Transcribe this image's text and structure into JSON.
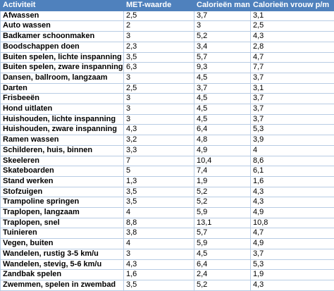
{
  "table": {
    "header": [
      "Activiteit",
      "MET-waarde",
      "Calorieën man p/m",
      "Calorieën vrouw p/m"
    ],
    "rows": [
      [
        "Afwassen",
        "2,5",
        "3,7",
        "3,1"
      ],
      [
        "Auto wassen",
        "2",
        "3",
        "2,5"
      ],
      [
        "Badkamer schoonmaken",
        "3",
        "5,2",
        "4,3"
      ],
      [
        "Boodschappen doen",
        "2,3",
        "3,4",
        "2,8"
      ],
      [
        "Buiten spelen, lichte inspanning",
        "3,5",
        "5,7",
        "4,7"
      ],
      [
        "Buiten spelen, zware inspanning",
        "6,3",
        "9,3",
        "7,7"
      ],
      [
        "Dansen, ballroom, langzaam",
        "3",
        "4,5",
        "3,7"
      ],
      [
        "Darten",
        "2,5",
        "3,7",
        "3,1"
      ],
      [
        "Frisbeeën",
        "3",
        "4,5",
        "3,7"
      ],
      [
        "Hond uitlaten",
        "3",
        "4,5",
        "3,7"
      ],
      [
        "Huishouden, lichte inspanning",
        "3",
        "4,5",
        "3,7"
      ],
      [
        "Huishouden, zware inspanning",
        "4,3",
        "6,4",
        "5,3"
      ],
      [
        "Ramen wassen",
        "3,2",
        "4,8",
        "3,9"
      ],
      [
        "Schilderen, huis, binnen",
        "3,3",
        "4,9",
        "4"
      ],
      [
        "Skeeleren",
        "7",
        "10,4",
        "8,6"
      ],
      [
        "Skateboarden",
        "5",
        "7,4",
        "6,1"
      ],
      [
        "Stand werken",
        "1,3",
        "1,9",
        "1,6"
      ],
      [
        "Stofzuigen",
        "3,5",
        "5,2",
        "4,3"
      ],
      [
        "Trampoline springen",
        "3,5",
        "5,2",
        "4,3"
      ],
      [
        "Traplopen, langzaam",
        "4",
        "5,9",
        "4,9"
      ],
      [
        "Traplopen, snel",
        "8,8",
        "13,1",
        "10,8"
      ],
      [
        "Tuinieren",
        "3,8",
        "5,7",
        "4,7"
      ],
      [
        "Vegen, buiten",
        "4",
        "5,9",
        "4,9"
      ],
      [
        "Wandelen, rustig 3-5 km/u",
        "3",
        "4,5",
        "3,7"
      ],
      [
        "Wandelen, stevig, 5-6 km/u",
        "4,3",
        "6,4",
        "5,3"
      ],
      [
        "Zandbak spelen",
        "1,6",
        "2,4",
        "1,9"
      ],
      [
        "Zwemmen, spelen in zwembad",
        "3,5",
        "5,2",
        "4,3"
      ]
    ]
  }
}
